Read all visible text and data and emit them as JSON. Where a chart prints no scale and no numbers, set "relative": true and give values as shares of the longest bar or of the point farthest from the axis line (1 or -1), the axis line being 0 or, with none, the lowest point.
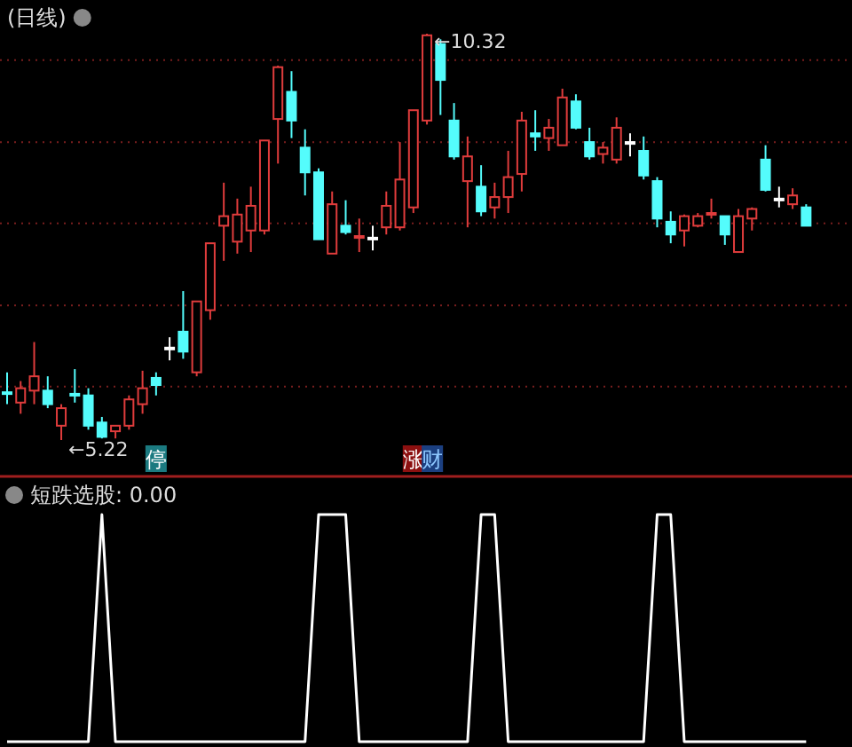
{
  "chart_data": [
    {
      "type": "candlestick",
      "title": "(日线)",
      "grid": "y",
      "categories": [
        null,
        null,
        null,
        null,
        null,
        null,
        null,
        null,
        null,
        null,
        null,
        null,
        null,
        null,
        null,
        null,
        null,
        null,
        null,
        null,
        null,
        null,
        null,
        null,
        null,
        null,
        null,
        null,
        null,
        null,
        null,
        null,
        null,
        null,
        null,
        null,
        null,
        null,
        null,
        null,
        null,
        null,
        null,
        null,
        null,
        null,
        null,
        null,
        null,
        null,
        null,
        null,
        null,
        null,
        null,
        null,
        null,
        null,
        null,
        null
      ],
      "yticks": [
        {
          "value": 9.99,
          "label": null
        },
        {
          "value": 8.96,
          "label": null
        },
        {
          "value": 7.94,
          "label": null
        },
        {
          "value": 6.91,
          "label": null
        },
        {
          "value": 5.89,
          "label": null
        }
      ],
      "ohlc": [
        [
          5.82,
          6.07,
          5.67,
          5.8
        ],
        [
          5.69,
          5.96,
          5.55,
          5.87
        ],
        [
          5.84,
          6.45,
          5.67,
          6.02
        ],
        [
          5.84,
          6.02,
          5.62,
          5.67
        ],
        [
          5.4,
          5.67,
          5.22,
          5.62
        ],
        [
          5.8,
          6.11,
          5.69,
          5.78
        ],
        [
          5.78,
          5.87,
          5.35,
          5.4
        ],
        [
          5.44,
          5.51,
          5.24,
          5.26
        ],
        [
          5.33,
          5.4,
          5.24,
          5.4
        ],
        [
          5.4,
          5.78,
          5.35,
          5.73
        ],
        [
          5.67,
          6.09,
          5.55,
          5.87
        ],
        [
          6.0,
          6.07,
          5.78,
          5.91
        ],
        [
          6.38,
          6.51,
          6.22,
          6.38
        ],
        [
          6.58,
          7.09,
          6.24,
          6.33
        ],
        [
          6.07,
          6.96,
          6.02,
          6.96
        ],
        [
          6.85,
          7.69,
          6.73,
          7.69
        ],
        [
          7.91,
          8.45,
          7.47,
          8.03
        ],
        [
          7.71,
          8.25,
          7.56,
          8.05
        ],
        [
          7.85,
          8.4,
          7.58,
          8.16
        ],
        [
          7.85,
          8.98,
          7.8,
          8.98
        ],
        [
          9.25,
          9.92,
          8.69,
          9.9
        ],
        [
          9.59,
          9.85,
          9.01,
          9.23
        ],
        [
          8.89,
          9.12,
          8.29,
          8.58
        ],
        [
          8.58,
          8.63,
          7.74,
          7.74
        ],
        [
          7.56,
          8.34,
          7.56,
          8.18
        ],
        [
          7.91,
          8.23,
          7.8,
          7.83
        ],
        [
          7.78,
          8.0,
          7.58,
          7.78
        ],
        [
          7.76,
          7.91,
          7.6,
          7.76
        ],
        [
          7.89,
          8.34,
          7.8,
          8.16
        ],
        [
          7.89,
          8.96,
          7.85,
          8.49
        ],
        [
          8.14,
          9.36,
          8.07,
          9.36
        ],
        [
          9.23,
          10.32,
          9.18,
          10.3
        ],
        [
          10.19,
          10.25,
          9.3,
          9.74
        ],
        [
          9.23,
          9.45,
          8.74,
          8.78
        ],
        [
          8.47,
          9.03,
          7.89,
          8.78
        ],
        [
          8.4,
          8.67,
          8.03,
          8.09
        ],
        [
          8.14,
          8.45,
          8.0,
          8.27
        ],
        [
          8.27,
          8.85,
          8.07,
          8.52
        ],
        [
          8.56,
          9.34,
          8.34,
          9.23
        ],
        [
          9.07,
          9.36,
          8.85,
          9.03
        ],
        [
          9.01,
          9.25,
          8.85,
          9.14
        ],
        [
          8.92,
          9.63,
          8.92,
          9.52
        ],
        [
          9.47,
          9.56,
          9.12,
          9.14
        ],
        [
          8.96,
          9.14,
          8.74,
          8.78
        ],
        [
          8.81,
          8.96,
          8.69,
          8.89
        ],
        [
          8.74,
          9.27,
          8.69,
          9.14
        ],
        [
          8.96,
          9.07,
          8.78,
          8.96
        ],
        [
          8.85,
          9.03,
          8.49,
          8.54
        ],
        [
          8.47,
          8.52,
          7.89,
          8.0
        ],
        [
          7.96,
          8.09,
          7.69,
          7.8
        ],
        [
          7.85,
          8.05,
          7.65,
          8.03
        ],
        [
          7.91,
          8.07,
          7.89,
          8.03
        ],
        [
          8.07,
          8.25,
          8.0,
          8.07
        ],
        [
          8.03,
          8.03,
          7.67,
          7.8
        ],
        [
          7.58,
          8.12,
          7.58,
          8.03
        ],
        [
          8.0,
          8.14,
          7.85,
          8.12
        ],
        [
          8.74,
          8.92,
          8.34,
          8.36
        ],
        [
          8.25,
          8.4,
          8.14,
          8.25
        ],
        [
          8.18,
          8.38,
          8.12,
          8.29
        ],
        [
          8.14,
          8.18,
          7.91,
          7.91
        ]
      ],
      "colors": [
        "#54fcfc",
        "#e03c3c",
        "#e03c3c",
        "#54fcfc",
        "#e03c3c",
        "#54fcfc",
        "#54fcfc",
        "#54fcfc",
        "#e03c3c",
        "#e03c3c",
        "#e03c3c",
        "#54fcfc",
        "#ffffff",
        "#54fcfc",
        "#e03c3c",
        "#e03c3c",
        "#e03c3c",
        "#e03c3c",
        "#e03c3c",
        "#e03c3c",
        "#e03c3c",
        "#54fcfc",
        "#54fcfc",
        "#54fcfc",
        "#e03c3c",
        "#54fcfc",
        "#e03c3c",
        "#ffffff",
        "#e03c3c",
        "#e03c3c",
        "#e03c3c",
        "#e03c3c",
        "#54fcfc",
        "#54fcfc",
        "#e03c3c",
        "#54fcfc",
        "#e03c3c",
        "#e03c3c",
        "#e03c3c",
        "#54fcfc",
        "#e03c3c",
        "#e03c3c",
        "#54fcfc",
        "#54fcfc",
        "#e03c3c",
        "#e03c3c",
        "#ffffff",
        "#54fcfc",
        "#54fcfc",
        "#54fcfc",
        "#e03c3c",
        "#e03c3c",
        "#e03c3c",
        "#54fcfc",
        "#e03c3c",
        "#e03c3c",
        "#54fcfc",
        "#ffffff",
        "#e03c3c",
        "#54fcfc"
      ],
      "annotations": [
        "←10.32",
        "←5.22",
        "停",
        "涨",
        "财"
      ]
    },
    {
      "type": "line",
      "title": "短跌选股: 0.00",
      "relative": true,
      "categories": [
        null,
        null,
        null,
        null,
        null,
        null,
        null,
        null,
        null,
        null,
        null,
        null,
        null,
        null,
        null,
        null,
        null,
        null,
        null,
        null,
        null,
        null,
        null,
        null,
        null,
        null,
        null,
        null,
        null,
        null,
        null,
        null,
        null,
        null,
        null,
        null,
        null,
        null,
        null,
        null,
        null,
        null,
        null,
        null,
        null,
        null,
        null,
        null,
        null,
        null,
        null,
        null,
        null,
        null,
        null,
        null,
        null,
        null,
        null,
        null
      ],
      "series": [
        {
          "color": "#ffffff",
          "values": [
            0,
            0,
            0,
            0,
            0,
            0,
            0,
            1,
            0,
            0,
            0,
            0,
            0,
            0,
            0,
            0,
            0,
            0,
            0,
            0,
            0,
            0,
            0,
            1,
            1,
            1,
            0,
            0,
            0,
            0,
            0,
            0,
            0,
            0,
            0,
            1,
            1,
            0,
            0,
            0,
            0,
            0,
            0,
            0,
            0,
            0,
            0,
            0,
            1,
            1,
            0,
            0,
            0,
            0,
            0,
            0,
            0,
            0,
            0,
            0
          ]
        }
      ]
    }
  ]
}
